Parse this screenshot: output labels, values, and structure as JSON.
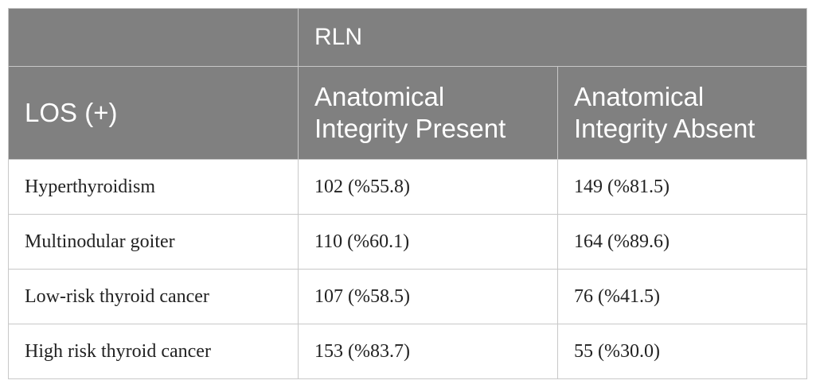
{
  "table": {
    "header_group_label": "RLN",
    "row_header_label": "LOS (+)",
    "column_labels": [
      "Anatomical Integrity Present",
      "Anatomical Integrity Absent"
    ],
    "rows": [
      {
        "label": "Hyperthyroidism",
        "present": "102 (%55.8)",
        "absent": "149 (%81.5)"
      },
      {
        "label": "Multinodular goiter",
        "present": "110 (%60.1)",
        "absent": "164 (%89.6)"
      },
      {
        "label": "Low-risk thyroid cancer",
        "present": "107 (%58.5)",
        "absent": "76 (%41.5)"
      },
      {
        "label": "High risk thyroid cancer",
        "present": "153 (%83.7)",
        "absent": "55 (%30.0)"
      }
    ]
  },
  "colors": {
    "header_bg": "#808080",
    "header_text": "#ffffff",
    "border": "#c8c8c8"
  }
}
